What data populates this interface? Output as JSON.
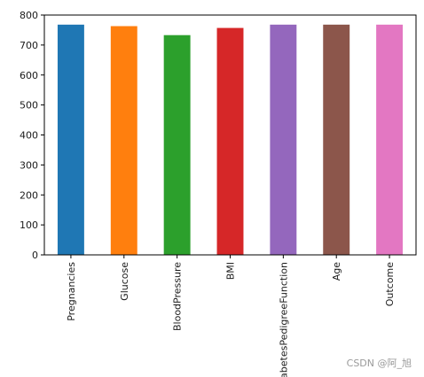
{
  "chart_data": {
    "type": "bar",
    "categories": [
      "Pregnancies",
      "Glucose",
      "BloodPressure",
      "BMI",
      "DiabetesPedigreeFunction",
      "Age",
      "Outcome"
    ],
    "values": [
      768,
      763,
      733,
      757,
      768,
      768,
      768
    ],
    "colors": [
      "#1f77b4",
      "#ff7f0e",
      "#2ca02c",
      "#d62728",
      "#9467bd",
      "#8c564b",
      "#e377c2"
    ],
    "ylim": [
      0,
      800
    ],
    "yticks": [
      0,
      100,
      200,
      300,
      400,
      500,
      600,
      700,
      800
    ],
    "ytick_labels": [
      "0",
      "100",
      "200",
      "300",
      "400",
      "500",
      "600",
      "700",
      "800"
    ],
    "title": "",
    "xlabel": "",
    "ylabel": "",
    "grid": false,
    "xtick_rotation": "vertical"
  },
  "watermark": "CSDN @阿_旭"
}
